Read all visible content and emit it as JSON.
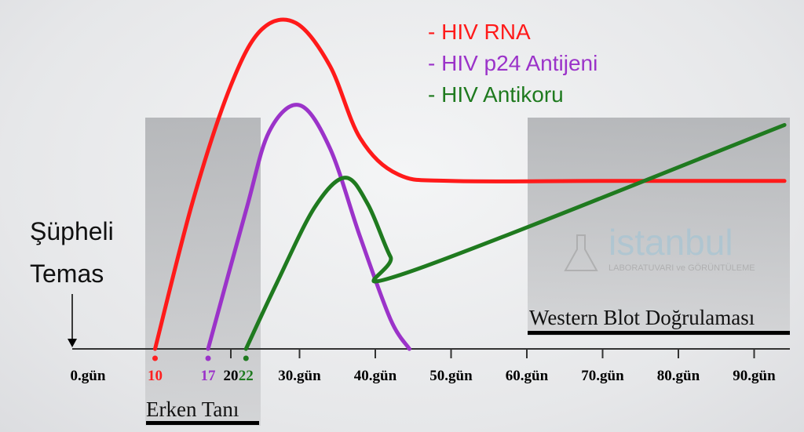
{
  "chart_data": {
    "type": "line",
    "title": "",
    "xlabel": "",
    "ylabel": "",
    "xlim": [
      0,
      94
    ],
    "ylim": [
      0,
      100
    ],
    "grid": false,
    "legend_position": "top-right",
    "x_ticks": [
      {
        "value": 0,
        "label": "0.gün",
        "color": "#000000",
        "dot": false
      },
      {
        "value": 10,
        "label": "10",
        "color": "#ff2020",
        "dot": true
      },
      {
        "value": 17,
        "label": "17",
        "color": "#9b33c9",
        "dot": true
      },
      {
        "value": 20,
        "label": "20",
        "color": "#000000",
        "dot": false
      },
      {
        "value": 22,
        "label": "22",
        "color": "#1f7a1f",
        "dot": true
      },
      {
        "value": 30,
        "label": "30.gün",
        "color": "#000000",
        "dot": false
      },
      {
        "value": 40,
        "label": "40.gün",
        "color": "#000000",
        "dot": false
      },
      {
        "value": 50,
        "label": "50.gün",
        "color": "#000000",
        "dot": false
      },
      {
        "value": 60,
        "label": "60.gün",
        "color": "#000000",
        "dot": false
      },
      {
        "value": 70,
        "label": "70.gün",
        "color": "#000000",
        "dot": false
      },
      {
        "value": 80,
        "label": "80.gün",
        "color": "#000000",
        "dot": false
      },
      {
        "value": 90,
        "label": "90.gün",
        "color": "#000000",
        "dot": false
      }
    ],
    "series": [
      {
        "name": "- HIV RNA",
        "color": "#ff1a1a",
        "points": [
          [
            10,
            0
          ],
          [
            15,
            45
          ],
          [
            20,
            80
          ],
          [
            25,
            97
          ],
          [
            29.5,
            99
          ],
          [
            34,
            86
          ],
          [
            38,
            64
          ],
          [
            43,
            53
          ],
          [
            50,
            51
          ],
          [
            70,
            51
          ],
          [
            94,
            51
          ]
        ]
      },
      {
        "name": "- HIV p24 Antijeni",
        "color": "#9b33c9",
        "points": [
          [
            17,
            0
          ],
          [
            22,
            42
          ],
          [
            26,
            66
          ],
          [
            30,
            74
          ],
          [
            34,
            61
          ],
          [
            38,
            34
          ],
          [
            42,
            9
          ],
          [
            44.5,
            0
          ]
        ]
      },
      {
        "name": "- HIV Antikoru",
        "color": "#1f7a1f",
        "points": [
          [
            22,
            0
          ],
          [
            27,
            20
          ],
          [
            32,
            43
          ],
          [
            36,
            52
          ],
          [
            39,
            44
          ],
          [
            42,
            28
          ],
          [
            44,
            23
          ],
          [
            94,
            68
          ]
        ]
      }
    ],
    "annotations": {
      "exposure": "Şüpheli Temas",
      "exposure_line1": "Şüpheli",
      "exposure_line2": "Temas",
      "early_window": "Erken Tanı",
      "western_blot": "Western Blot Doğrulaması"
    }
  },
  "watermark": {
    "brand": "istanbul",
    "sub": "LABORATUVARI ve GÖRÜNTÜLEME",
    "badge": "ISTANBUL",
    "lab": "LAB"
  }
}
